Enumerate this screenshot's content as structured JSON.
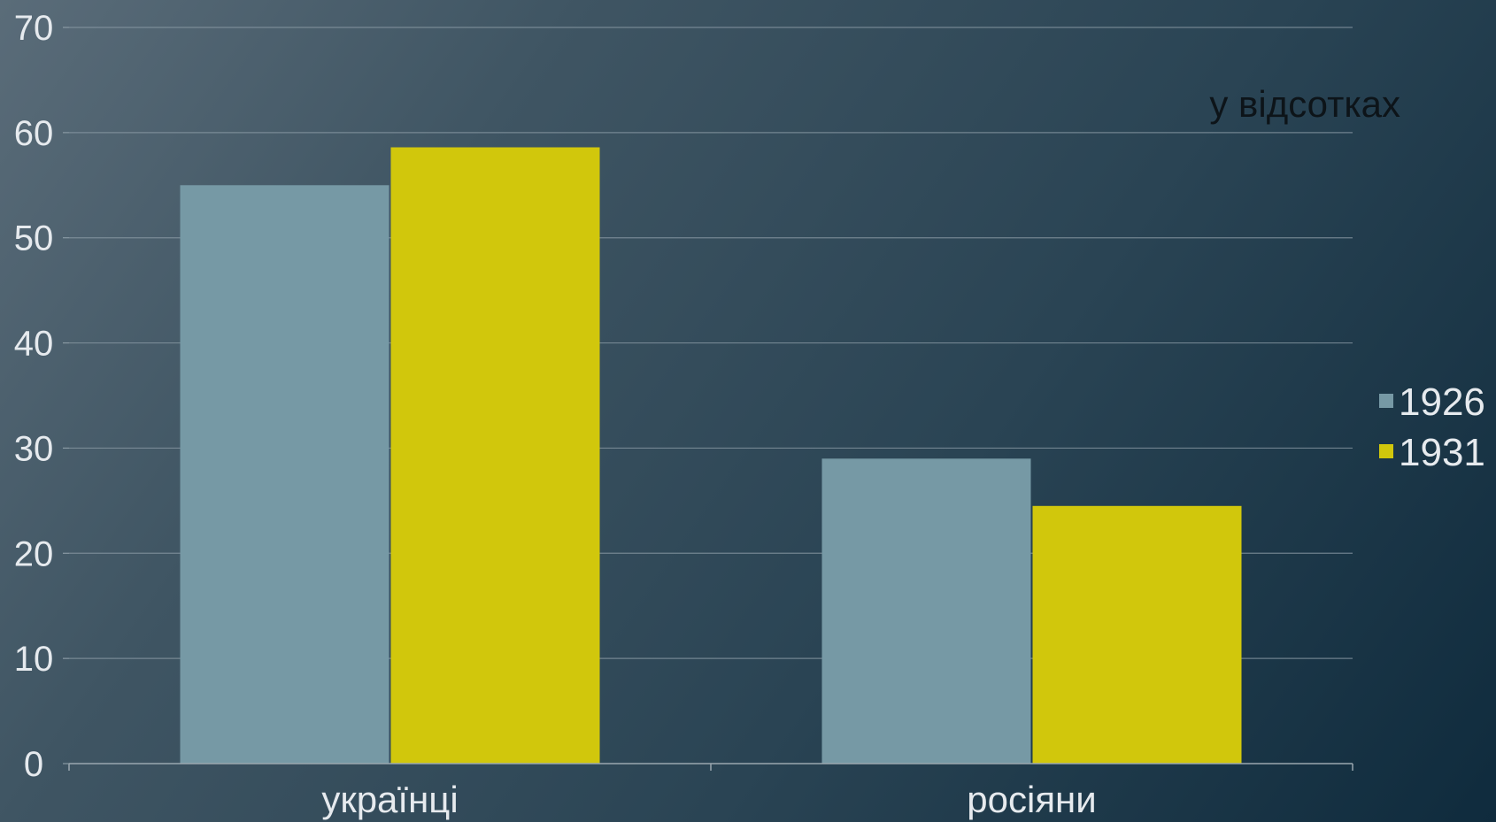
{
  "chart_data": {
    "type": "bar",
    "title": "",
    "xlabel": "",
    "ylabel": "",
    "unit_note": "у відсотках",
    "categories": [
      "українці",
      "росіяни"
    ],
    "series": [
      {
        "name": "1926",
        "values": [
          55,
          29
        ],
        "color": "#7699a5"
      },
      {
        "name": "1931",
        "values": [
          58.6,
          24.5
        ],
        "color": "#d1c70c"
      }
    ],
    "ylim": [
      0,
      70
    ],
    "yticks": [
      0,
      10,
      20,
      30,
      40,
      50,
      60,
      70
    ],
    "grid": true,
    "legend_position": "right"
  }
}
